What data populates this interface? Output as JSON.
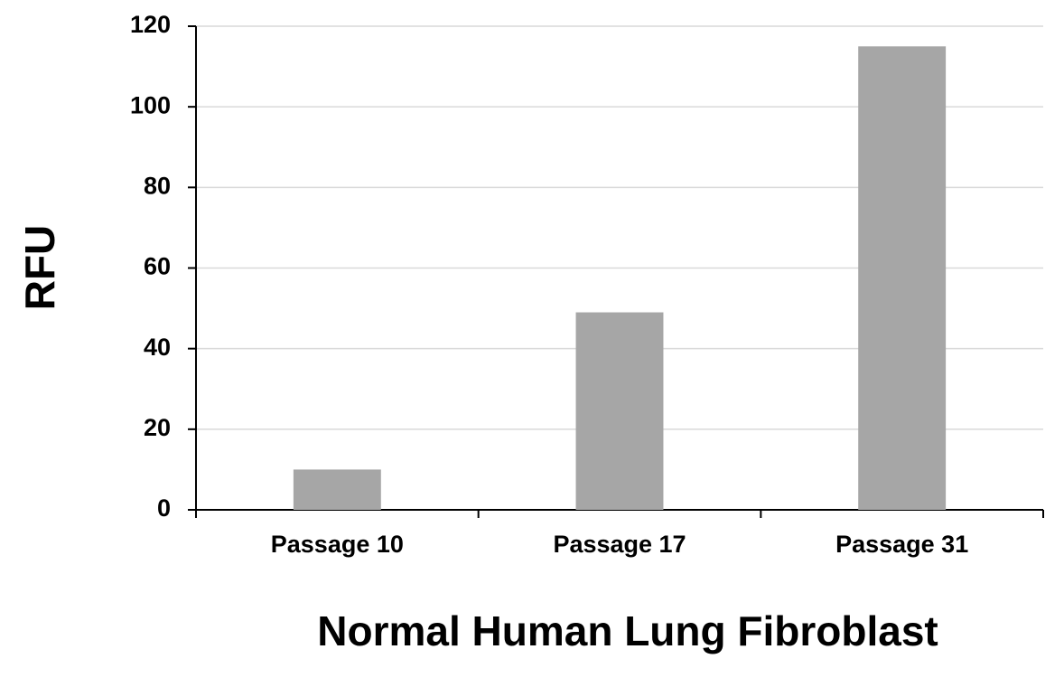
{
  "chart_data": {
    "type": "bar",
    "x_label": "Normal Human Lung Fibroblast",
    "y_label": "RFU",
    "categories": [
      "Passage 10",
      "Passage 17",
      "Passage 31"
    ],
    "values": [
      10,
      49,
      115
    ],
    "color": "#a6a6a6",
    "ylim": [
      0,
      120
    ],
    "yticks": [
      0,
      20,
      40,
      60,
      80,
      100,
      120
    ],
    "grid": true
  }
}
